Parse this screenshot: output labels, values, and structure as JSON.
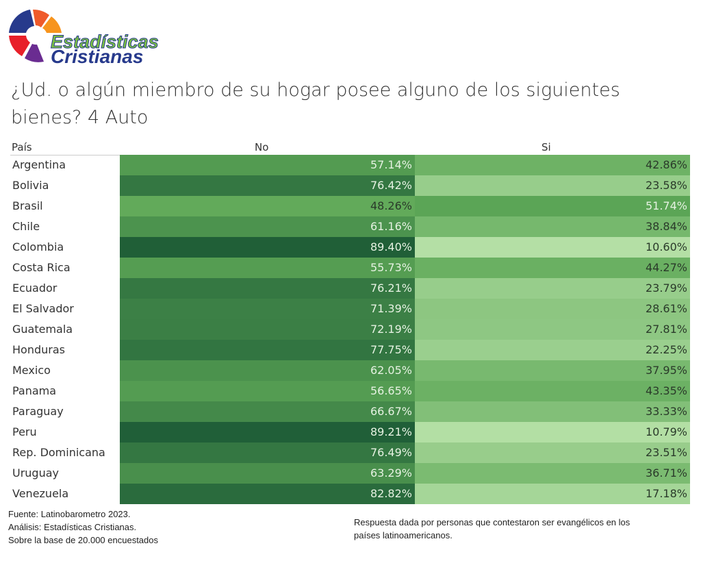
{
  "logo": {
    "line1": "Estadísticas",
    "line2": "Cristianas"
  },
  "title": "¿Ud. o algún miembro de su hogar posee alguno de los siguientes bienes? 4   Auto",
  "chart_data": {
    "type": "heatmap",
    "columns": [
      "País",
      "No",
      "Si"
    ],
    "categories": [
      "Argentina",
      "Bolivia",
      "Brasil",
      "Chile",
      "Colombia",
      "Costa Rica",
      "Ecuador",
      "El Salvador",
      "Guatemala",
      "Honduras",
      "Mexico",
      "Panama",
      "Paraguay",
      "Peru",
      "Rep. Dominicana",
      "Uruguay",
      "Venezuela"
    ],
    "series": [
      {
        "name": "No",
        "values": [
          57.14,
          76.42,
          48.26,
          61.16,
          89.4,
          55.73,
          76.21,
          71.39,
          72.19,
          77.75,
          62.05,
          56.65,
          66.67,
          89.21,
          76.49,
          63.29,
          82.82
        ]
      },
      {
        "name": "Si",
        "values": [
          42.86,
          23.58,
          51.74,
          38.84,
          10.6,
          44.27,
          23.79,
          28.61,
          27.81,
          22.25,
          37.95,
          43.35,
          33.33,
          10.79,
          23.51,
          36.71,
          17.18
        ]
      }
    ],
    "unit": "%",
    "colors": {
      "low": "#b5e0a6",
      "mid": "#5ea857",
      "high": "#1f5e37"
    }
  },
  "footer": {
    "left": [
      "Fuente: Latinobarometro 2023.",
      "Análisis: Estadísticas Cristianas.",
      "Sobre la base de 20.000 encuestados"
    ],
    "right": [
      "Respuesta dada por personas que contestaron ser evangélicos en los",
      "países latinoamericanos."
    ]
  }
}
